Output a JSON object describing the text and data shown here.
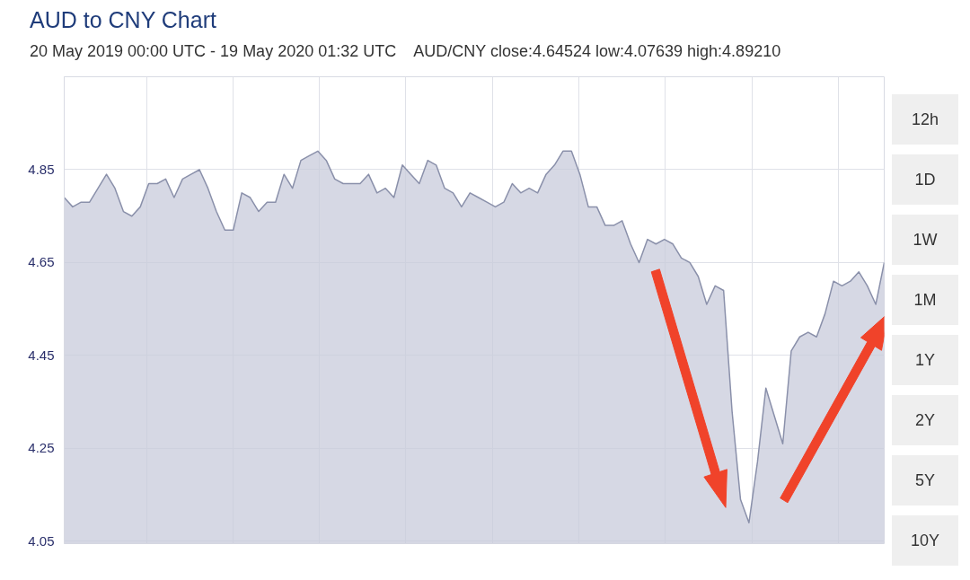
{
  "chart_data": {
    "type": "area",
    "title": "AUD to CNY Chart",
    "subtitle": "20 May 2019 00:00 UTC - 19 May 2020 01:32 UTC    AUD/CNY close:4.64524 low:4.07639 high:4.89210",
    "categories": [
      null,
      null,
      null,
      null,
      null,
      null,
      null,
      null,
      null,
      null,
      null,
      null,
      null,
      null,
      null,
      null,
      null,
      null,
      null,
      null,
      null,
      null,
      null,
      null,
      null,
      null,
      null,
      null,
      null,
      null,
      null,
      null,
      null,
      null,
      null,
      null,
      null,
      null,
      null,
      null,
      null,
      null,
      null,
      null,
      null,
      null,
      null,
      null,
      null,
      null,
      null,
      null,
      null,
      null,
      null,
      null,
      null,
      null,
      null,
      null,
      null,
      null,
      null,
      null,
      null,
      null,
      null,
      null,
      null,
      null,
      null,
      null,
      null,
      null,
      null,
      null,
      null,
      null,
      null,
      null,
      null,
      null,
      null,
      null,
      null,
      null,
      null,
      null,
      null,
      null,
      null,
      null,
      null,
      null,
      null,
      null,
      null,
      null
    ],
    "series": [
      {
        "color": "#8a90aa",
        "values": [
          4.79,
          4.77,
          4.78,
          4.78,
          4.81,
          4.84,
          4.81,
          4.76,
          4.75,
          4.77,
          4.82,
          4.82,
          4.83,
          4.79,
          4.83,
          4.84,
          4.85,
          4.81,
          4.76,
          4.72,
          4.72,
          4.8,
          4.79,
          4.76,
          4.78,
          4.78,
          4.84,
          4.81,
          4.87,
          4.88,
          4.89,
          4.87,
          4.83,
          4.82,
          4.82,
          4.82,
          4.84,
          4.8,
          4.81,
          4.79,
          4.86,
          4.84,
          4.82,
          4.87,
          4.86,
          4.81,
          4.8,
          4.77,
          4.8,
          4.79,
          4.78,
          4.77,
          4.78,
          4.82,
          4.8,
          4.81,
          4.8,
          4.84,
          4.86,
          4.89,
          4.89,
          4.84,
          4.77,
          4.77,
          4.73,
          4.73,
          4.74,
          4.69,
          4.65,
          4.7,
          4.69,
          4.7,
          4.69,
          4.66,
          4.65,
          4.62,
          4.56,
          4.6,
          4.59,
          4.33,
          4.14,
          4.09,
          4.22,
          4.38,
          4.32,
          4.26,
          4.46,
          4.49,
          4.5,
          4.49,
          4.54,
          4.61,
          4.6,
          4.61,
          4.63,
          4.6,
          4.56,
          4.65
        ]
      }
    ],
    "ylim": [
      4.045,
      5.05
    ],
    "yticks": [
      4.05,
      4.25,
      4.45,
      4.65,
      4.85
    ],
    "grid": true,
    "tick_labels": "y",
    "annotations": [
      "12h",
      "1D",
      "1W",
      "1M",
      "1Y",
      "2Y",
      "5Y",
      "10Y"
    ]
  }
}
